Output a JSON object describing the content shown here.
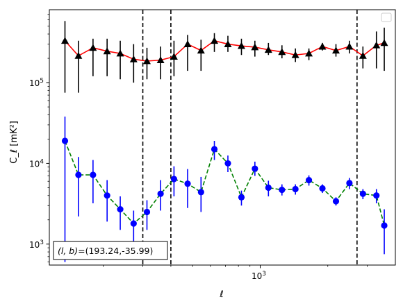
{
  "chart_data": {
    "type": "line",
    "xlabel": "ℓ",
    "ylabel": "C_ℓ  [mK²]",
    "x_scale": "log",
    "y_scale": "log",
    "xlim": [
      115,
      4000
    ],
    "ylim": [
      550,
      800000
    ],
    "x_ticks": [
      {
        "value": 1000,
        "base": "10",
        "exp": "3"
      }
    ],
    "y_ticks": [
      {
        "value": 1000,
        "base": "10",
        "exp": "3"
      },
      {
        "value": 10000,
        "base": "10",
        "exp": "4"
      },
      {
        "value": 100000,
        "base": "10",
        "exp": "5"
      }
    ],
    "grid": false,
    "legend": "top-right (empty)",
    "annotation": {
      "prefix": "(l, b)=",
      "value": "(193.24,-35.99)",
      "placement": "bottom-left"
    },
    "vertical_lines": [
      {
        "x": 300,
        "style": "dashed",
        "color": "#000000"
      },
      {
        "x": 400,
        "style": "dashed",
        "color": "#000000"
      },
      {
        "x": 2700,
        "style": "dashed",
        "color": "#000000"
      }
    ],
    "series": [
      {
        "marker": "triangle",
        "marker_color": "#000000",
        "line_color": "#ff0000",
        "line_style": "solid",
        "errorbar_color": "#000000",
        "points": [
          {
            "x": 135,
            "y": 330000,
            "lo": 75000,
            "hi": 580000
          },
          {
            "x": 155,
            "y": 215000,
            "lo": 75000,
            "hi": 330000
          },
          {
            "x": 180,
            "y": 270000,
            "lo": 120000,
            "hi": 350000
          },
          {
            "x": 208,
            "y": 245000,
            "lo": 120000,
            "hi": 350000
          },
          {
            "x": 238,
            "y": 230000,
            "lo": 110000,
            "hi": 330000
          },
          {
            "x": 273,
            "y": 195000,
            "lo": 100000,
            "hi": 300000
          },
          {
            "x": 313,
            "y": 185000,
            "lo": 110000,
            "hi": 270000
          },
          {
            "x": 360,
            "y": 190000,
            "lo": 110000,
            "hi": 280000
          },
          {
            "x": 413,
            "y": 210000,
            "lo": 120000,
            "hi": 330000
          },
          {
            "x": 475,
            "y": 300000,
            "lo": 140000,
            "hi": 390000
          },
          {
            "x": 545,
            "y": 250000,
            "lo": 140000,
            "hi": 340000
          },
          {
            "x": 625,
            "y": 330000,
            "lo": 240000,
            "hi": 410000
          },
          {
            "x": 718,
            "y": 300000,
            "lo": 240000,
            "hi": 380000
          },
          {
            "x": 825,
            "y": 285000,
            "lo": 220000,
            "hi": 350000
          },
          {
            "x": 947,
            "y": 275000,
            "lo": 210000,
            "hi": 330000
          },
          {
            "x": 1088,
            "y": 255000,
            "lo": 220000,
            "hi": 310000
          },
          {
            "x": 1250,
            "y": 240000,
            "lo": 200000,
            "hi": 290000
          },
          {
            "x": 1435,
            "y": 220000,
            "lo": 180000,
            "hi": 265000
          },
          {
            "x": 1648,
            "y": 230000,
            "lo": 190000,
            "hi": 265000
          },
          {
            "x": 1893,
            "y": 280000,
            "lo": 250000,
            "hi": 310000
          },
          {
            "x": 2175,
            "y": 250000,
            "lo": 210000,
            "hi": 300000
          },
          {
            "x": 2497,
            "y": 280000,
            "lo": 230000,
            "hi": 330000
          },
          {
            "x": 2868,
            "y": 215000,
            "lo": 150000,
            "hi": 280000
          },
          {
            "x": 3294,
            "y": 290000,
            "lo": 150000,
            "hi": 430000
          },
          {
            "x": 3570,
            "y": 310000,
            "lo": 140000,
            "hi": 480000
          }
        ]
      },
      {
        "marker": "circle",
        "marker_color": "#0000ff",
        "line_color": "#008000",
        "line_style": "dashed",
        "errorbar_color": "#0000ff",
        "points": [
          {
            "x": 135,
            "y": 19000,
            "lo": 600,
            "hi": 38000
          },
          {
            "x": 155,
            "y": 7200,
            "lo": 2200,
            "hi": 12000
          },
          {
            "x": 180,
            "y": 7200,
            "lo": 3200,
            "hi": 11000
          },
          {
            "x": 208,
            "y": 4000,
            "lo": 1900,
            "hi": 6200
          },
          {
            "x": 238,
            "y": 2700,
            "lo": 1500,
            "hi": 3900
          },
          {
            "x": 273,
            "y": 1800,
            "lo": 900,
            "hi": 2600
          },
          {
            "x": 313,
            "y": 2500,
            "lo": 1500,
            "hi": 3500
          },
          {
            "x": 360,
            "y": 4200,
            "lo": 2600,
            "hi": 6200
          },
          {
            "x": 413,
            "y": 6400,
            "lo": 3900,
            "hi": 9200
          },
          {
            "x": 475,
            "y": 5600,
            "lo": 2800,
            "hi": 8500
          },
          {
            "x": 545,
            "y": 4400,
            "lo": 2500,
            "hi": 6800
          },
          {
            "x": 625,
            "y": 15000,
            "lo": 11000,
            "hi": 19000
          },
          {
            "x": 718,
            "y": 10000,
            "lo": 7800,
            "hi": 12500
          },
          {
            "x": 825,
            "y": 3800,
            "lo": 3000,
            "hi": 4600
          },
          {
            "x": 947,
            "y": 8600,
            "lo": 7000,
            "hi": 10500
          },
          {
            "x": 1088,
            "y": 5000,
            "lo": 3900,
            "hi": 6100
          },
          {
            "x": 1250,
            "y": 4700,
            "lo": 4000,
            "hi": 5500
          },
          {
            "x": 1435,
            "y": 4800,
            "lo": 4100,
            "hi": 5500
          },
          {
            "x": 1648,
            "y": 6200,
            "lo": 5300,
            "hi": 7100
          },
          {
            "x": 1893,
            "y": 4900,
            "lo": 4300,
            "hi": 5500
          },
          {
            "x": 2175,
            "y": 3400,
            "lo": 3000,
            "hi": 3800
          },
          {
            "x": 2497,
            "y": 5700,
            "lo": 4800,
            "hi": 6600
          },
          {
            "x": 2868,
            "y": 4200,
            "lo": 3600,
            "hi": 4800
          },
          {
            "x": 3294,
            "y": 4000,
            "lo": 3200,
            "hi": 4800
          },
          {
            "x": 3570,
            "y": 1700,
            "lo": 750,
            "hi": 2700
          }
        ]
      }
    ]
  }
}
